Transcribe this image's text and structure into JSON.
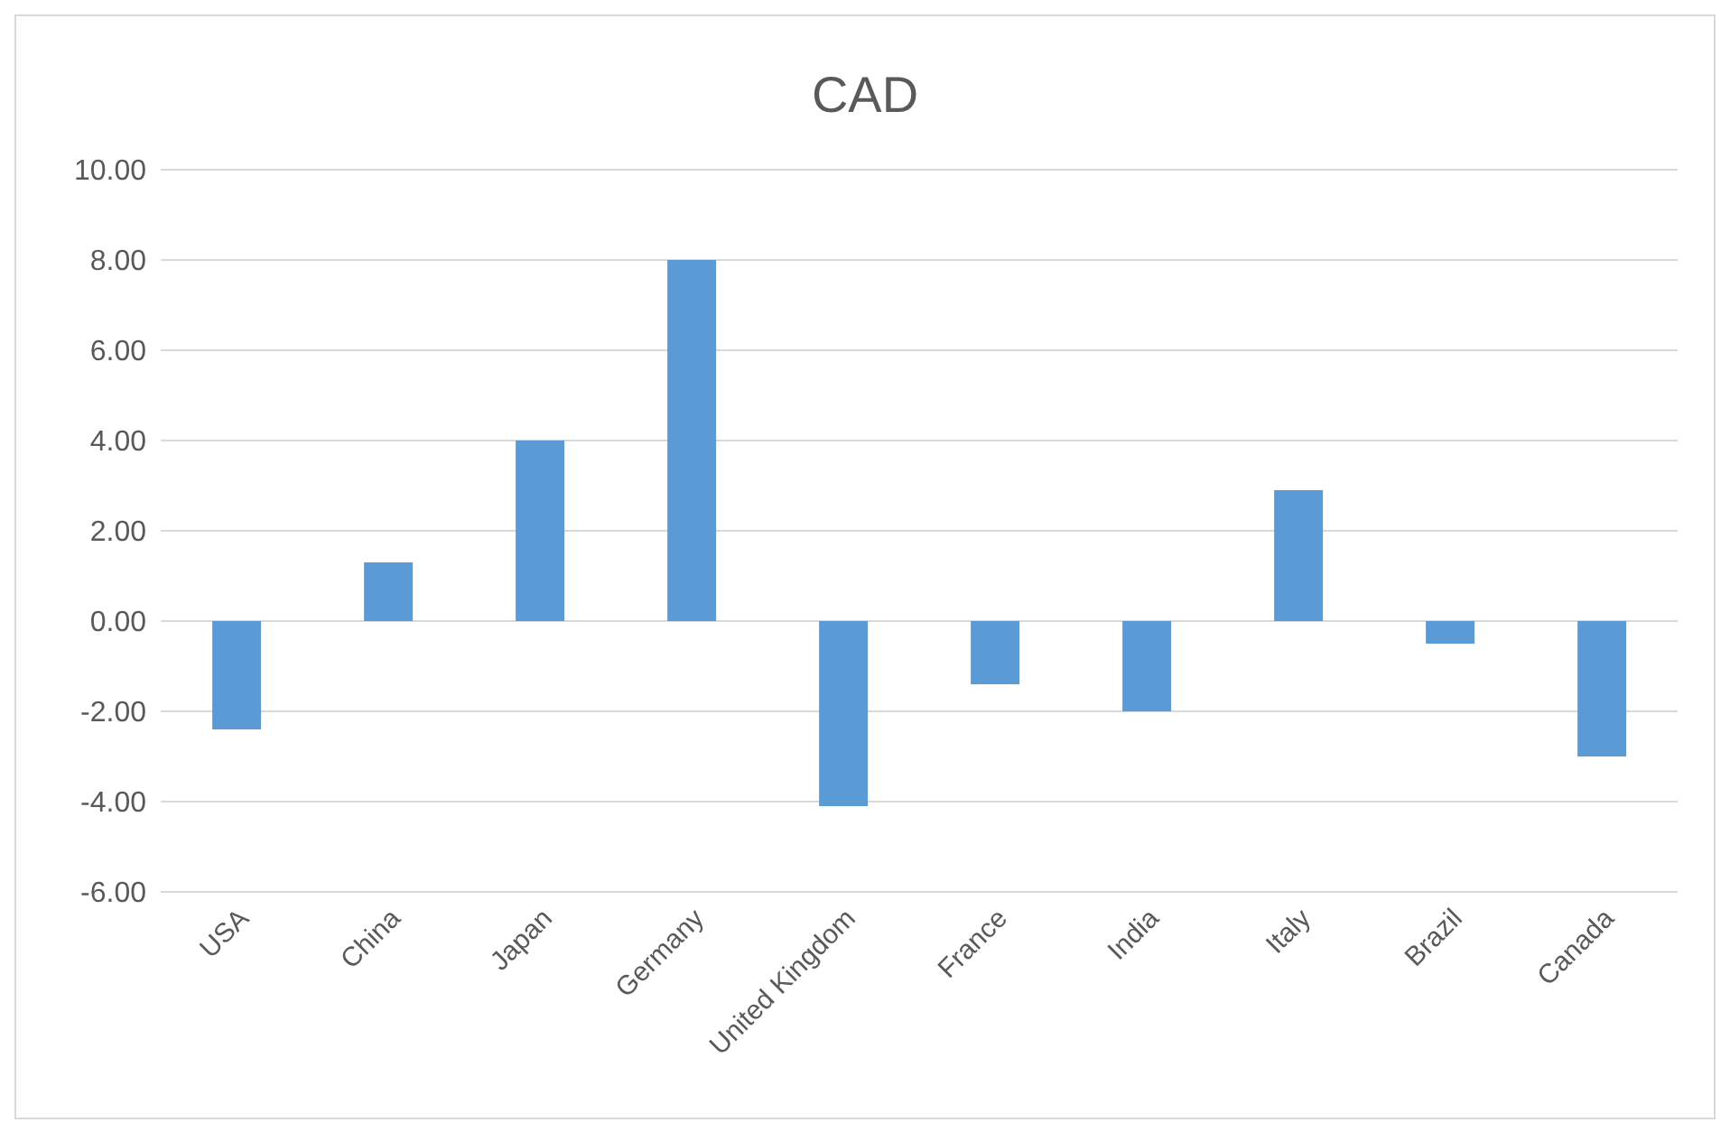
{
  "chart_data": {
    "type": "bar",
    "title": "CAD",
    "categories": [
      "USA",
      "China",
      "Japan",
      "Germany",
      "United Kingdom",
      "France",
      "India",
      "Italy",
      "Brazil",
      "Canada"
    ],
    "values": [
      -2.4,
      1.3,
      4.0,
      8.0,
      -4.1,
      -1.4,
      -2.0,
      2.9,
      -0.5,
      -3.0
    ],
    "color": "#5b9bd5",
    "ylim": [
      -6,
      10
    ],
    "yticks": [
      {
        "value": -6,
        "label": "-6.00"
      },
      {
        "value": -4,
        "label": "-4.00"
      },
      {
        "value": -2,
        "label": "-2.00"
      },
      {
        "value": 0,
        "label": "0.00"
      },
      {
        "value": 2,
        "label": "2.00"
      },
      {
        "value": 4,
        "label": "4.00"
      },
      {
        "value": 6,
        "label": "6.00"
      },
      {
        "value": 8,
        "label": "8.00"
      },
      {
        "value": 10,
        "label": "10.00"
      }
    ],
    "grid": "y"
  }
}
